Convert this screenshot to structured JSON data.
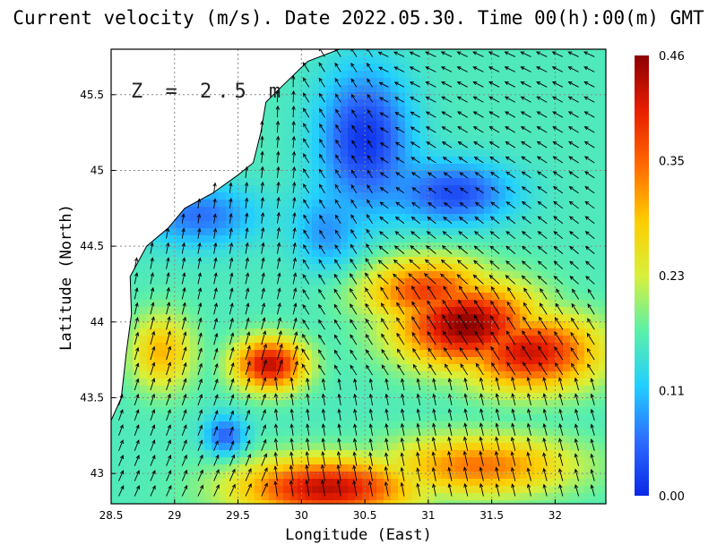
{
  "chart_data": {
    "type": "heatmap",
    "title": "Current velocity (m/s). Date 2022.05.30. Time 00(h):00(m) GMT",
    "xlabel": "Longitude (East)",
    "ylabel": "Latitude (North)",
    "annotation": "Z = 2.5 m",
    "xlim": [
      28.5,
      32.4
    ],
    "ylim": [
      42.8,
      45.8
    ],
    "x_ticks": [
      "28.5",
      "29",
      "29.5",
      "30",
      "30.5",
      "31",
      "31.5",
      "32"
    ],
    "x_tick_values": [
      28.5,
      29,
      29.5,
      30,
      30.5,
      31,
      31.5,
      32
    ],
    "y_ticks": [
      "43",
      "43.5",
      "44",
      "44.5",
      "45",
      "45.5"
    ],
    "y_tick_values": [
      43,
      43.5,
      44,
      44.5,
      45,
      45.5
    ],
    "grid": true,
    "colorbar": {
      "ticks": [
        "0.00",
        "0.11",
        "0.23",
        "0.35",
        "0.46"
      ],
      "tick_values": [
        0.0,
        0.11,
        0.23,
        0.35,
        0.46
      ],
      "min": 0.0,
      "max": 0.46,
      "colors": [
        "#0a28e6",
        "#2d6cff",
        "#22cfff",
        "#5cf0a8",
        "#d8f03a",
        "#ffcc00",
        "#ff6a00",
        "#e81e00",
        "#8c0000"
      ]
    },
    "background_speed": 0.16,
    "hotspots": [
      {
        "lon": 31.3,
        "lat": 43.98,
        "speed": 0.46,
        "rx": 0.55,
        "ry": 0.28
      },
      {
        "lon": 31.8,
        "lat": 43.8,
        "speed": 0.42,
        "rx": 0.55,
        "ry": 0.25
      },
      {
        "lon": 31.0,
        "lat": 44.2,
        "speed": 0.38,
        "rx": 0.5,
        "ry": 0.22
      },
      {
        "lon": 29.75,
        "lat": 43.72,
        "speed": 0.43,
        "rx": 0.28,
        "ry": 0.17
      },
      {
        "lon": 30.2,
        "lat": 42.9,
        "speed": 0.43,
        "rx": 0.7,
        "ry": 0.2
      },
      {
        "lon": 31.4,
        "lat": 43.05,
        "speed": 0.34,
        "rx": 0.75,
        "ry": 0.2
      },
      {
        "lon": 28.9,
        "lat": 43.8,
        "speed": 0.3,
        "rx": 0.25,
        "ry": 0.25
      }
    ],
    "coldspots": [
      {
        "lon": 30.5,
        "lat": 45.2,
        "speed": 0.01,
        "rx": 0.35,
        "ry": 0.45
      },
      {
        "lon": 31.2,
        "lat": 44.85,
        "speed": 0.03,
        "rx": 0.45,
        "ry": 0.2
      },
      {
        "lon": 29.4,
        "lat": 43.25,
        "speed": 0.05,
        "rx": 0.16,
        "ry": 0.13
      },
      {
        "lon": 29.2,
        "lat": 44.7,
        "speed": 0.06,
        "rx": 0.45,
        "ry": 0.2
      },
      {
        "lon": 30.2,
        "lat": 44.6,
        "speed": 0.08,
        "rx": 0.25,
        "ry": 0.25
      }
    ],
    "coastline_black_sea_west": [
      [
        28.5,
        43.35
      ],
      [
        28.58,
        43.5
      ],
      [
        28.62,
        43.8
      ],
      [
        28.66,
        44.05
      ],
      [
        28.65,
        44.3
      ],
      [
        28.78,
        44.5
      ],
      [
        28.95,
        44.62
      ],
      [
        29.08,
        44.75
      ],
      [
        29.3,
        44.85
      ],
      [
        29.5,
        44.97
      ],
      [
        29.62,
        45.05
      ],
      [
        29.68,
        45.25
      ],
      [
        29.72,
        45.45
      ],
      [
        29.84,
        45.55
      ],
      [
        30.05,
        45.72
      ],
      [
        30.3,
        45.8
      ]
    ],
    "land_label_points": []
  }
}
